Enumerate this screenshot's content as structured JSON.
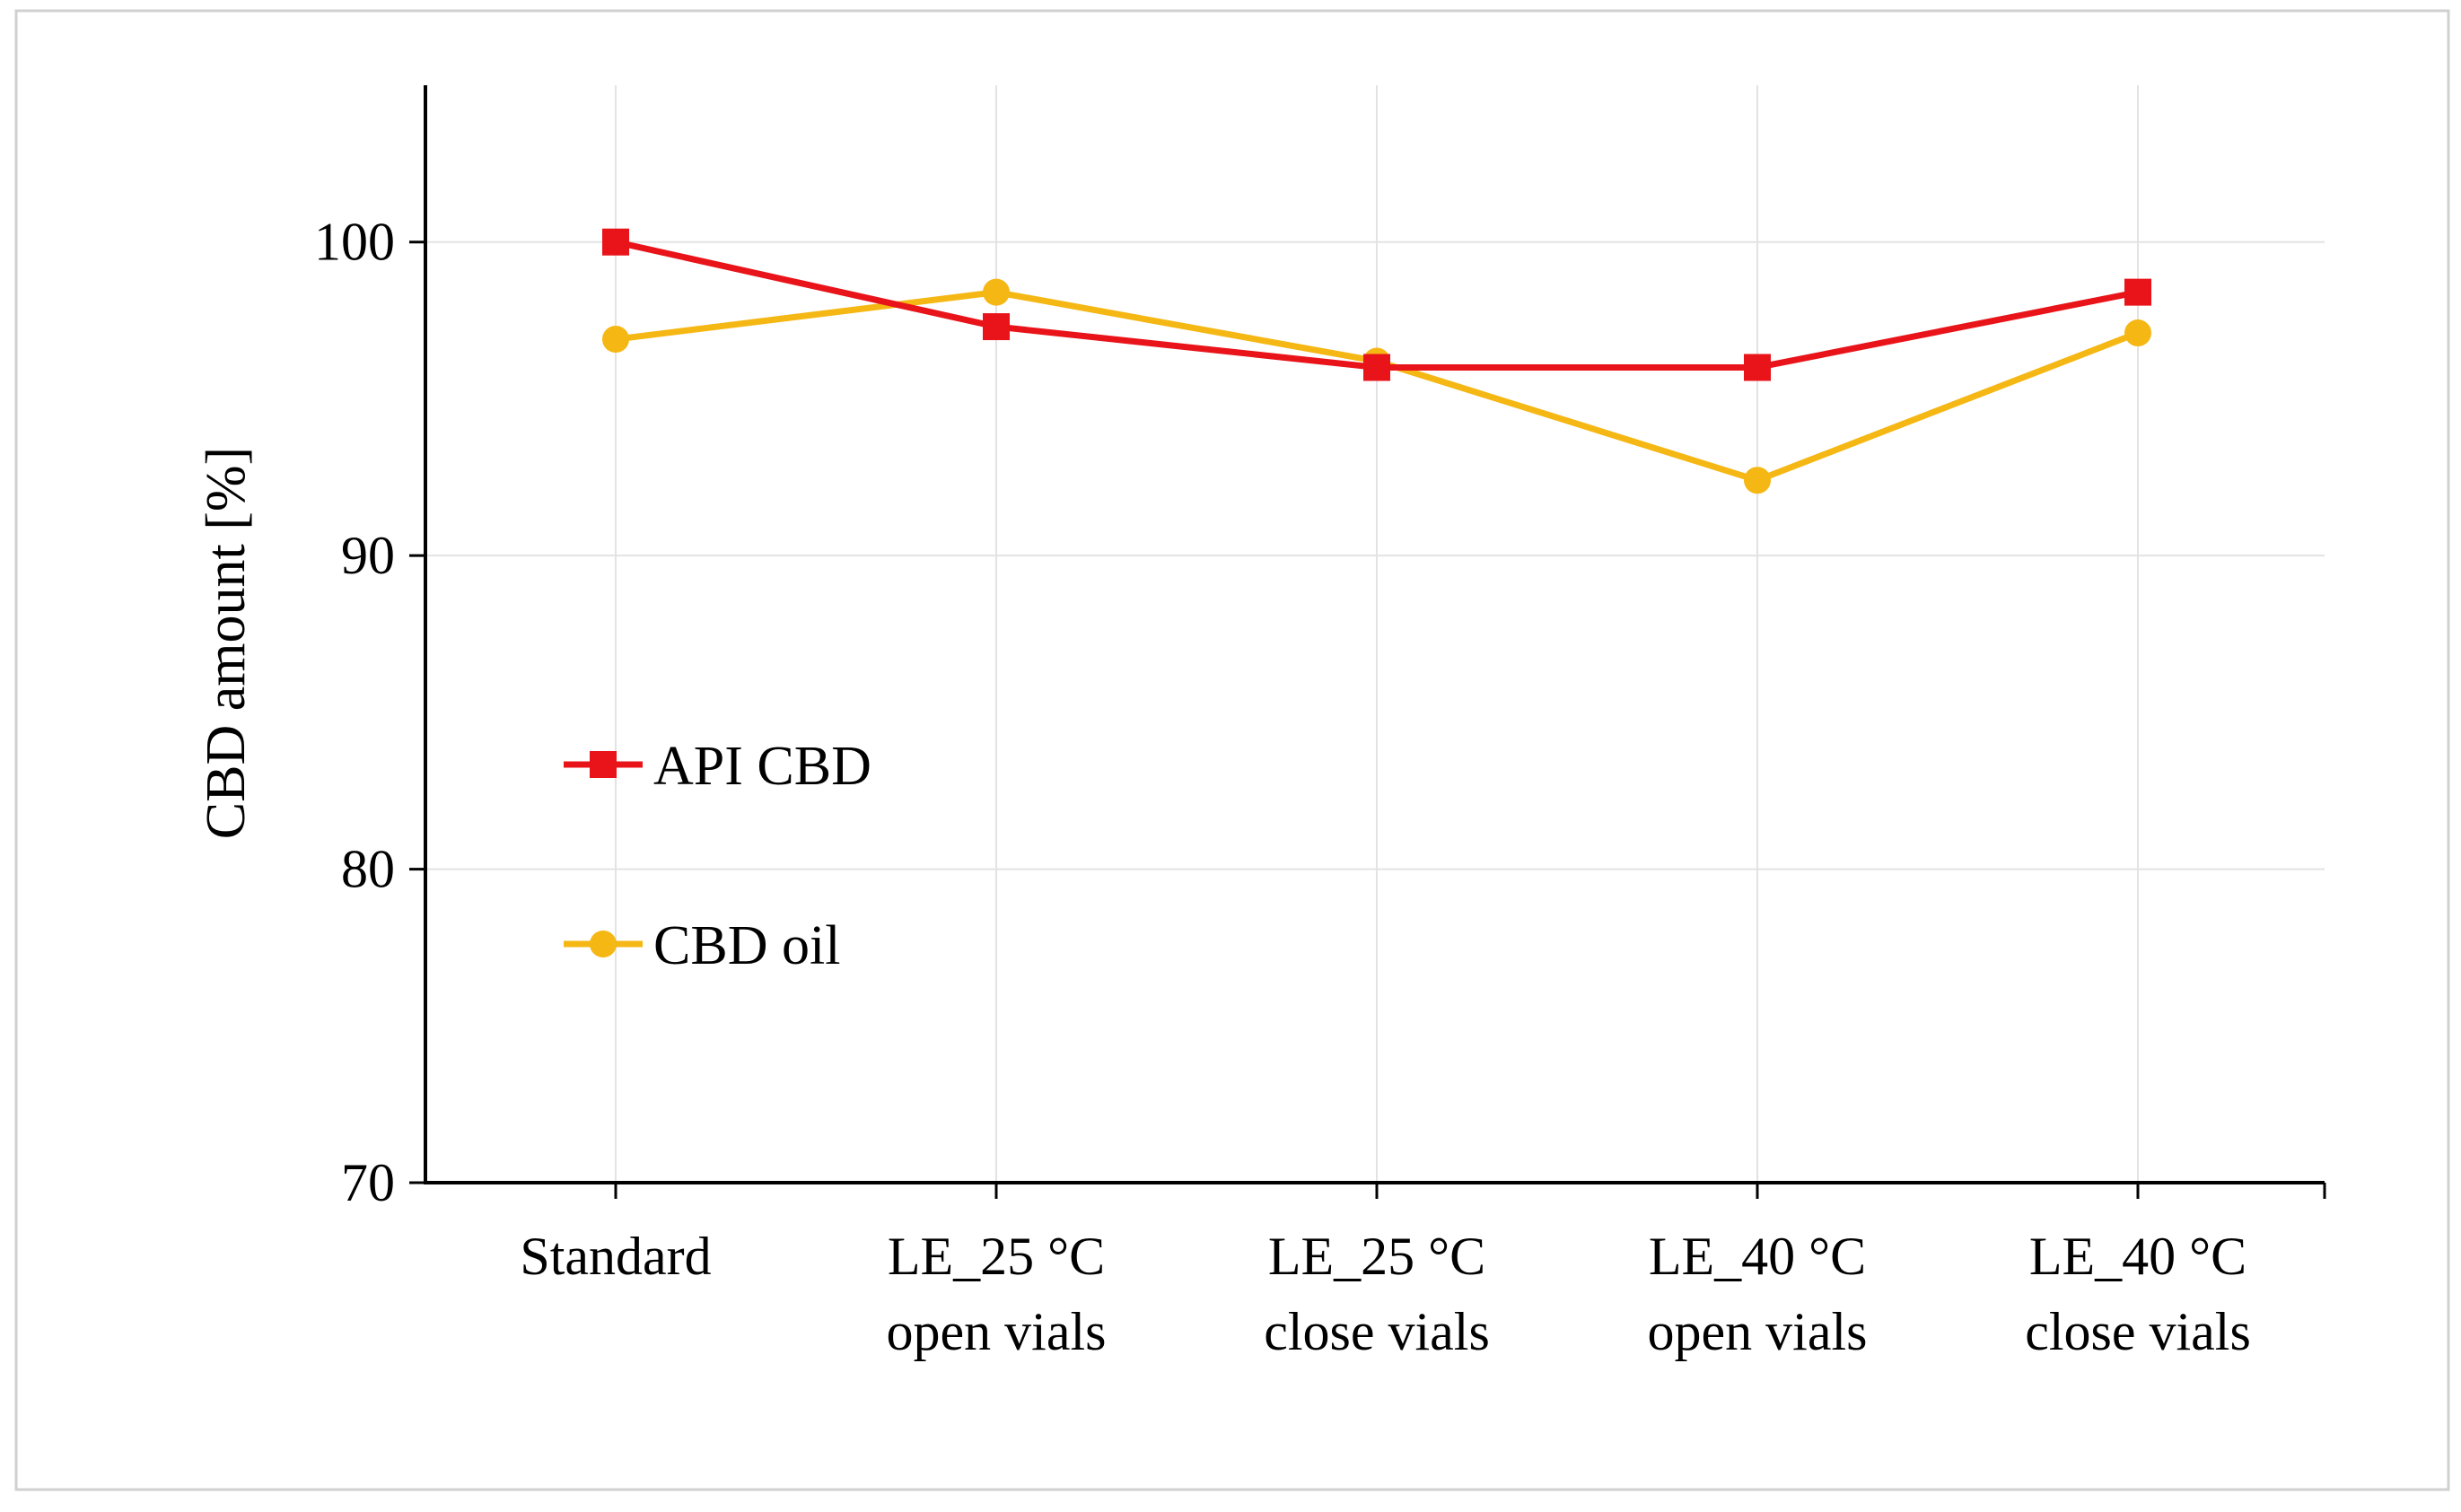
{
  "chart_data": {
    "type": "line",
    "title": "",
    "xlabel": "",
    "ylabel": "CBD amount [%]",
    "ylim": [
      70,
      105
    ],
    "yticks": [
      70,
      80,
      90,
      100
    ],
    "grid": true,
    "legend_position": "center-left",
    "categories": [
      [
        "Standard"
      ],
      [
        "LE_25 °C",
        "open vials"
      ],
      [
        "LE_25 °C",
        "close vials"
      ],
      [
        "LE_40 °C",
        "open vials"
      ],
      [
        "LE_40 °C",
        "close vials"
      ]
    ],
    "series": [
      {
        "name": "API CBD",
        "color": "#e8141a",
        "marker": "square",
        "values": [
          100,
          97.3,
          96,
          96,
          98.4
        ]
      },
      {
        "name": "CBD oil",
        "color": "#f5b714",
        "marker": "circle",
        "values": [
          96.9,
          98.4,
          96.2,
          92.4,
          97.1
        ]
      }
    ]
  }
}
